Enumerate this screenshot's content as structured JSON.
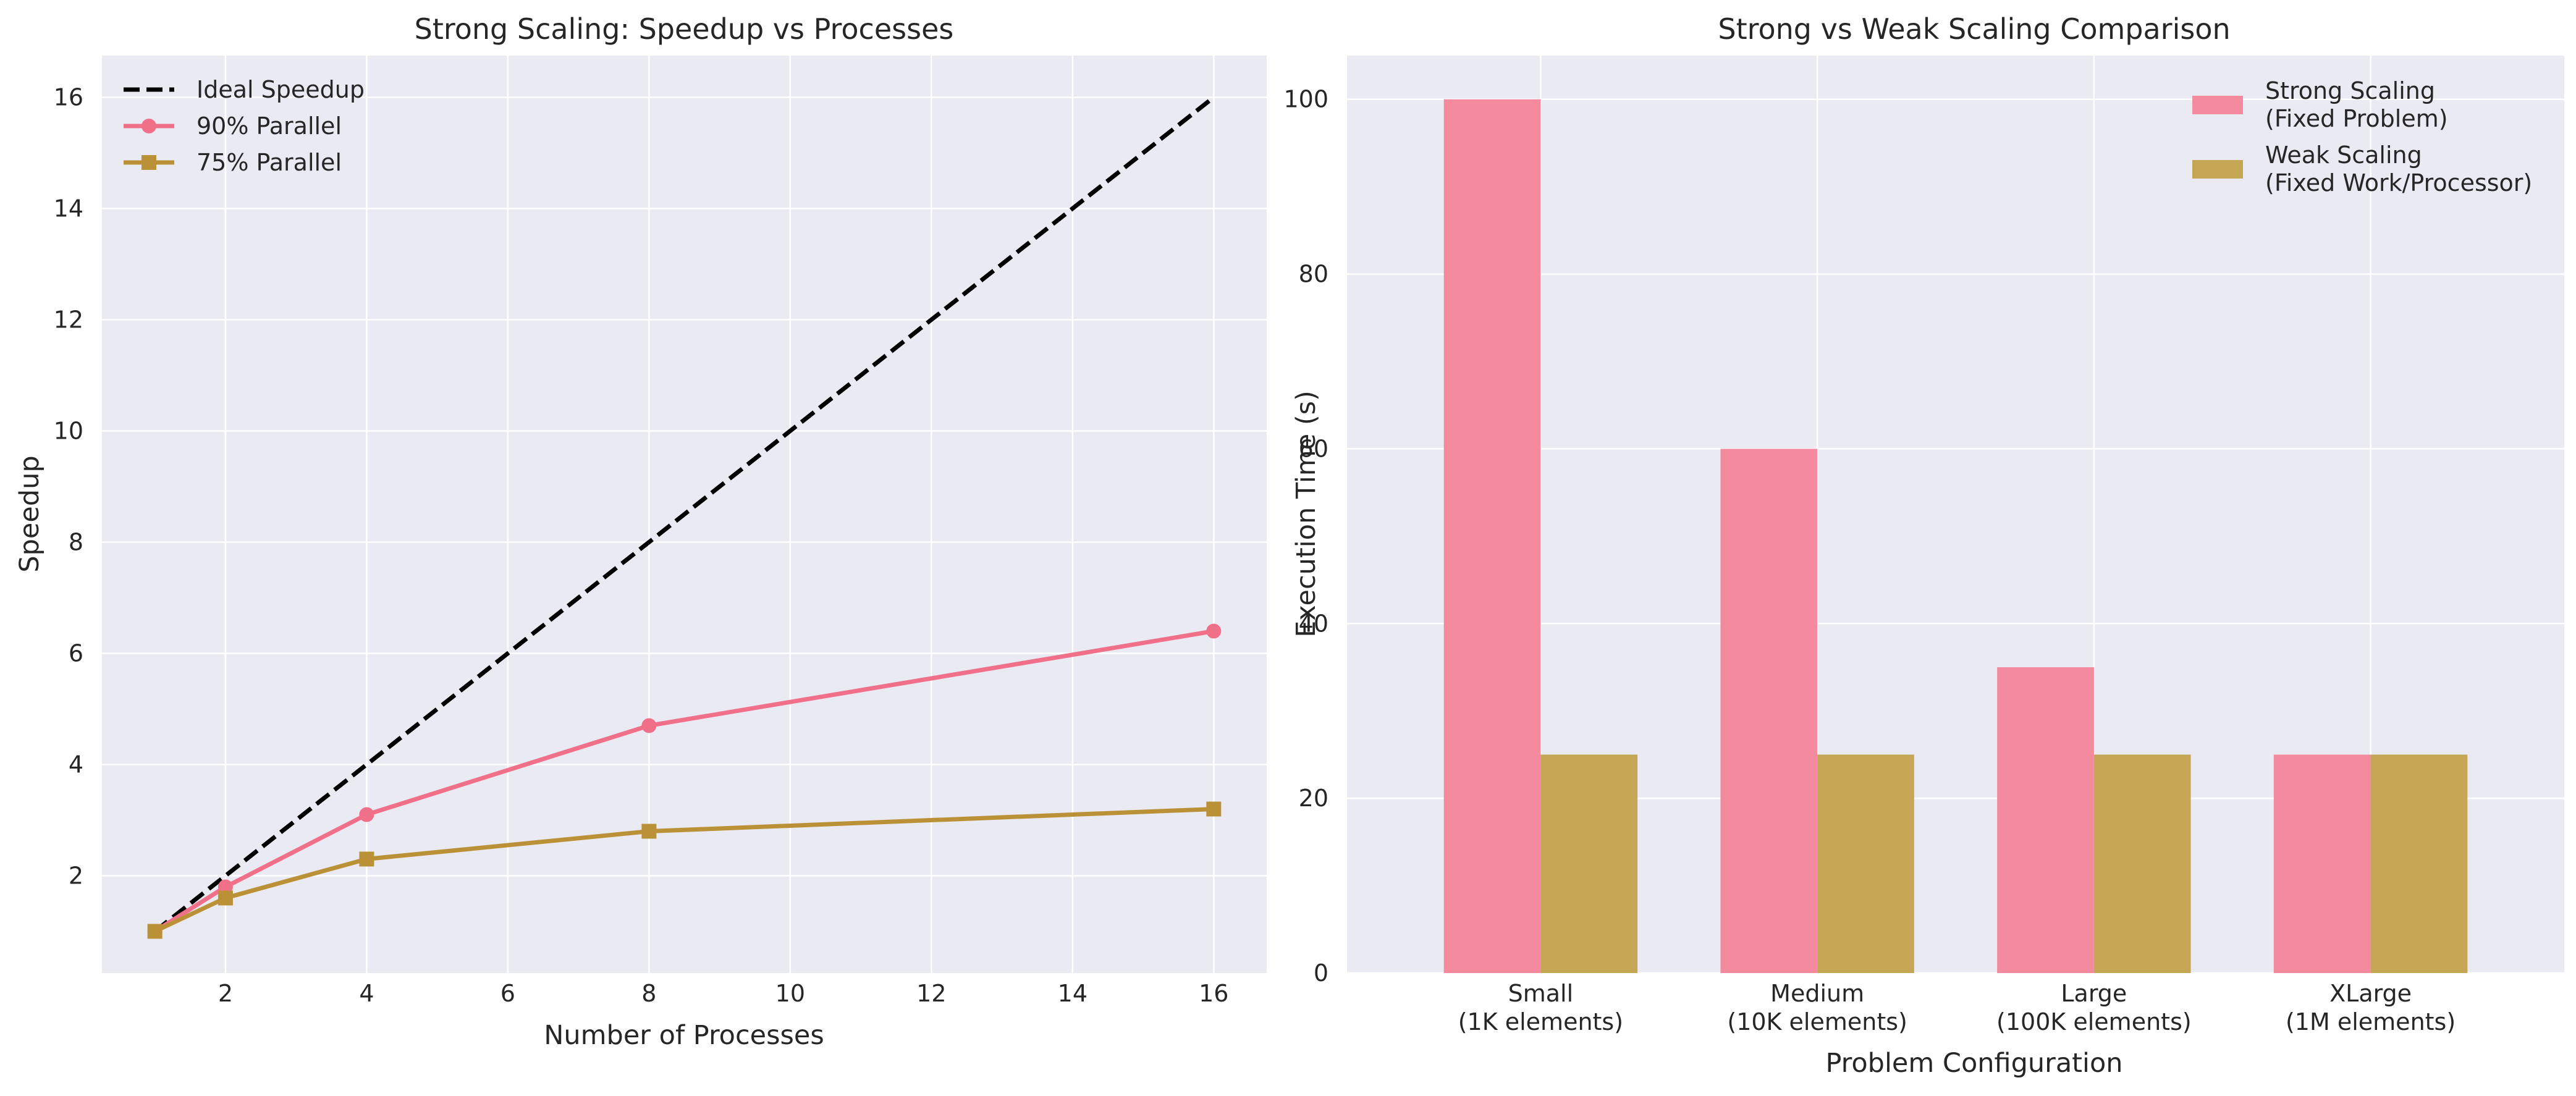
{
  "chart_data": [
    {
      "type": "line",
      "title": "Strong Scaling: Speedup vs Processes",
      "xlabel": "Number of Processes",
      "ylabel": "Speedup",
      "x": [
        1,
        2,
        4,
        8,
        16
      ],
      "xlim": [
        0.25,
        16.75
      ],
      "ylim": [
        0.25,
        16.75
      ],
      "xticks": [
        2,
        4,
        6,
        8,
        10,
        12,
        14,
        16
      ],
      "yticks": [
        2,
        4,
        6,
        8,
        10,
        12,
        14,
        16
      ],
      "grid": true,
      "legend_position": "top-left",
      "series": [
        {
          "name": "Ideal Speedup",
          "values": [
            1,
            2,
            4,
            8,
            16
          ],
          "color": "#000000",
          "style": "dashed",
          "marker": "none"
        },
        {
          "name": "90% Parallel",
          "values": [
            1.0,
            1.8,
            3.1,
            4.7,
            6.4
          ],
          "color": "#f07089",
          "style": "solid",
          "marker": "circle"
        },
        {
          "name": "75% Parallel",
          "values": [
            1.0,
            1.6,
            2.3,
            2.8,
            3.2
          ],
          "color": "#bb9138",
          "style": "solid",
          "marker": "square"
        }
      ]
    },
    {
      "type": "bar",
      "title": "Strong vs Weak Scaling Comparison",
      "xlabel": "Problem Configuration",
      "ylabel": "Execution Time (s)",
      "categories": [
        [
          "Small",
          "(1K elements)"
        ],
        [
          "Medium",
          "(10K elements)"
        ],
        [
          "Large",
          "(100K elements)"
        ],
        [
          "XLarge",
          "(1M elements)"
        ]
      ],
      "ylim": [
        0,
        105
      ],
      "yticks": [
        0,
        20,
        40,
        60,
        80,
        100
      ],
      "grid": true,
      "legend_position": "top-right",
      "series": [
        {
          "name": [
            "Strong Scaling",
            "(Fixed Problem)"
          ],
          "values": [
            100,
            60,
            35,
            25
          ],
          "color": "#f48a9e"
        },
        {
          "name": [
            "Weak Scaling",
            "(Fixed Work/Processor)"
          ],
          "values": [
            25,
            25,
            25,
            25
          ],
          "color": "#c4a655"
        }
      ]
    }
  ],
  "colors": {
    "plot_background": "#eaeaf2",
    "grid": "#ffffff",
    "text": "#262626"
  }
}
